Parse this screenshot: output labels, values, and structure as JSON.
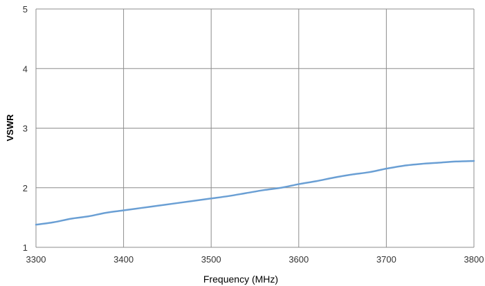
{
  "chart_data": {
    "type": "line",
    "xlabel": "Frequency (MHz)",
    "ylabel": "VSWR",
    "xlim": [
      3300,
      3800
    ],
    "ylim": [
      1,
      5
    ],
    "xticks": [
      "3300",
      "3400",
      "3500",
      "3600",
      "3700",
      "3800"
    ],
    "yticks": [
      "1",
      "2",
      "3",
      "4",
      "5"
    ],
    "grid": true,
    "legend": "none",
    "series": [
      {
        "color": "#6a9fd4",
        "x": [
          3300,
          3320,
          3340,
          3360,
          3380,
          3400,
          3420,
          3440,
          3460,
          3480,
          3500,
          3520,
          3540,
          3560,
          3580,
          3600,
          3620,
          3640,
          3660,
          3680,
          3700,
          3720,
          3740,
          3760,
          3780,
          3800
        ],
        "y": [
          1.38,
          1.42,
          1.48,
          1.52,
          1.58,
          1.62,
          1.66,
          1.7,
          1.74,
          1.78,
          1.82,
          1.86,
          1.91,
          1.96,
          2.0,
          2.06,
          2.11,
          2.17,
          2.22,
          2.26,
          2.32,
          2.37,
          2.4,
          2.42,
          2.44,
          2.45
        ]
      }
    ]
  }
}
